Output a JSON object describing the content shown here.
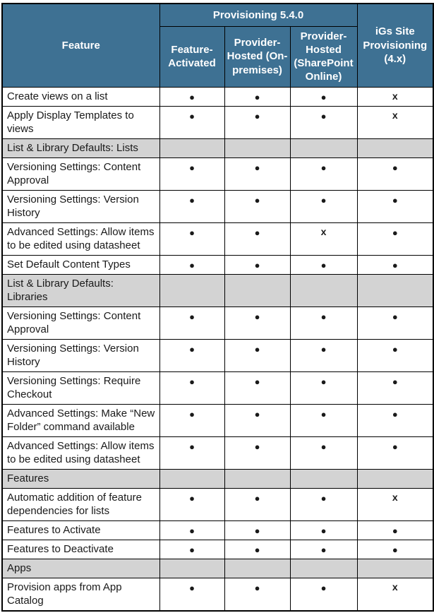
{
  "table": {
    "header": {
      "feature_label": "Feature",
      "group_label": "Provisioning 5.4.0",
      "sub_columns": [
        "Feature-Activated",
        "Provider-Hosted (On-premises)",
        "Provider-Hosted (SharePoint Online)"
      ],
      "igs_label": "iGs Site Provisioning (4.x)"
    },
    "symbols": {
      "supported": "●",
      "unsupported": "x"
    },
    "rows": [
      {
        "type": "feature",
        "label": "Create views on a list",
        "marks": [
          "●",
          "●",
          "●",
          "x"
        ]
      },
      {
        "type": "feature",
        "label": "Apply Display Templates to views",
        "marks": [
          "●",
          "●",
          "●",
          "x"
        ]
      },
      {
        "type": "section",
        "label": "List & Library Defaults: Lists"
      },
      {
        "type": "feature",
        "label": "Versioning Settings: Content Approval",
        "marks": [
          "●",
          "●",
          "●",
          "●"
        ]
      },
      {
        "type": "feature",
        "label": "Versioning Settings: Version History",
        "marks": [
          "●",
          "●",
          "●",
          "●"
        ]
      },
      {
        "type": "feature",
        "label": "Advanced Settings: Allow items to be edited using datasheet",
        "marks": [
          "●",
          "●",
          "x",
          "●"
        ]
      },
      {
        "type": "feature",
        "label": "Set Default Content Types",
        "marks": [
          "●",
          "●",
          "●",
          "●"
        ]
      },
      {
        "type": "section",
        "label": "List & Library Defaults: Libraries"
      },
      {
        "type": "feature",
        "label": "Versioning Settings: Content Approval",
        "marks": [
          "●",
          "●",
          "●",
          "●"
        ]
      },
      {
        "type": "feature",
        "label": "Versioning Settings: Version History",
        "marks": [
          "●",
          "●",
          "●",
          "●"
        ]
      },
      {
        "type": "feature",
        "label": "Versioning Settings: Require Checkout",
        "marks": [
          "●",
          "●",
          "●",
          "●"
        ]
      },
      {
        "type": "feature",
        "label": "Advanced Settings: Make “New Folder” command available",
        "marks": [
          "●",
          "●",
          "●",
          "●"
        ]
      },
      {
        "type": "feature",
        "label": "Advanced Settings: Allow items to be edited using datasheet",
        "marks": [
          "●",
          "●",
          "●",
          "●"
        ]
      },
      {
        "type": "section",
        "label": "Features"
      },
      {
        "type": "feature",
        "label": "Automatic addition of feature dependencies for lists",
        "marks": [
          "●",
          "●",
          "●",
          "x"
        ]
      },
      {
        "type": "feature",
        "label": "Features to Activate",
        "marks": [
          "●",
          "●",
          "●",
          "●"
        ]
      },
      {
        "type": "feature",
        "label": "Features to Deactivate",
        "marks": [
          "●",
          "●",
          "●",
          "●"
        ]
      },
      {
        "type": "section",
        "label": "Apps"
      },
      {
        "type": "feature",
        "label": "Provision apps from App Catalog",
        "marks": [
          "●",
          "●",
          "●",
          "x"
        ]
      }
    ]
  },
  "colors": {
    "header_bg": "#3e7193",
    "header_text": "#ffffff",
    "section_bg": "#d3d3d3",
    "border": "#000000",
    "body_text": "#1a1a1a"
  }
}
